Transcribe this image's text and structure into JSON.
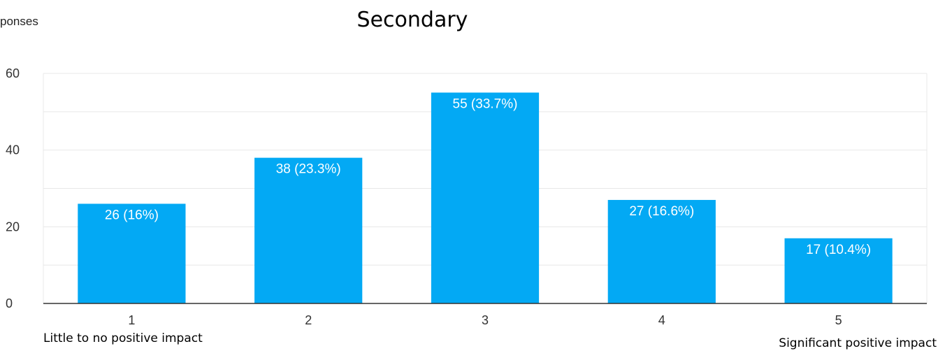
{
  "chart_data": {
    "type": "bar",
    "title": "Secondary",
    "corner_label": "ponses",
    "categories": [
      "1",
      "2",
      "3",
      "4",
      "5"
    ],
    "values": [
      26,
      38,
      55,
      27,
      17
    ],
    "data_labels": [
      "26 (16%)",
      "38 (23.3%)",
      "55 (33.7%)",
      "27 (16.6%)",
      "17 (10.4%)"
    ],
    "ylim": [
      0,
      60
    ],
    "yticks": [
      "0",
      "20",
      "40",
      "60"
    ],
    "annotations": {
      "left": "Little to no positive impact",
      "right": "Significant positive impact"
    },
    "grid": true,
    "bar_color": "#03a9f4",
    "grid_color": "#e8e8e8",
    "axis_color": "#333333"
  }
}
